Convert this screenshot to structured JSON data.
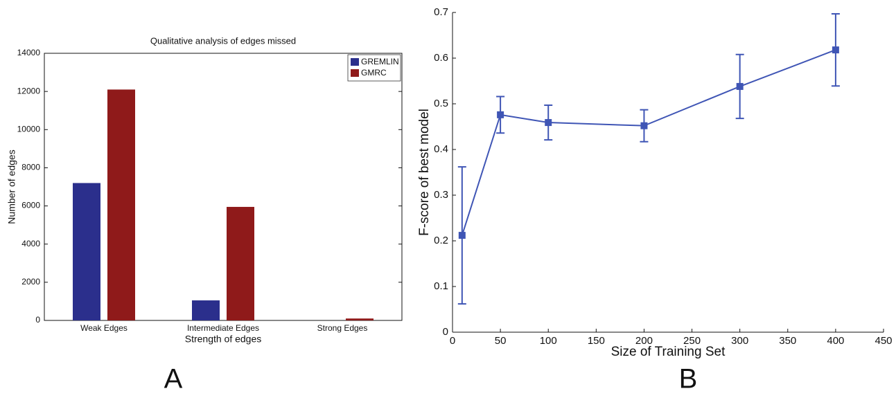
{
  "chart_data": [
    {
      "type": "bar",
      "title": "Qualitative analysis of edges missed",
      "xlabel": "Strength of edges",
      "ylabel": "Number of edges",
      "categories": [
        "Weak Edges",
        "Intermediate Edges",
        "Strong Edges"
      ],
      "series": [
        {
          "name": "GREMLIN",
          "color": "#2b2f8c",
          "values": [
            7200,
            1050,
            0
          ]
        },
        {
          "name": "GMRC",
          "color": "#8f1a1a",
          "values": [
            12100,
            5950,
            100
          ]
        }
      ],
      "ylim": [
        0,
        14000
      ],
      "yticks": [
        0,
        2000,
        4000,
        6000,
        8000,
        10000,
        12000,
        14000
      ],
      "legend": "upper right",
      "panel_label": "A"
    },
    {
      "type": "errorline",
      "xlabel": "Size of Training Set",
      "ylabel": "F-score of best model",
      "x": [
        10,
        50,
        100,
        200,
        300,
        400
      ],
      "series": [
        {
          "color": "#3f55b5",
          "values": [
            0.212,
            0.476,
            0.459,
            0.452,
            0.538,
            0.618
          ],
          "errors": [
            0.15,
            0.04,
            0.038,
            0.035,
            0.07,
            0.079
          ]
        }
      ],
      "xlim": [
        0,
        450
      ],
      "xticks": [
        0,
        50,
        100,
        150,
        200,
        250,
        300,
        350,
        400,
        450
      ],
      "ylim": [
        0,
        0.7
      ],
      "yticks": [
        0,
        0.1,
        0.2,
        0.3,
        0.4,
        0.5,
        0.6,
        0.7
      ],
      "panel_label": "B"
    }
  ]
}
